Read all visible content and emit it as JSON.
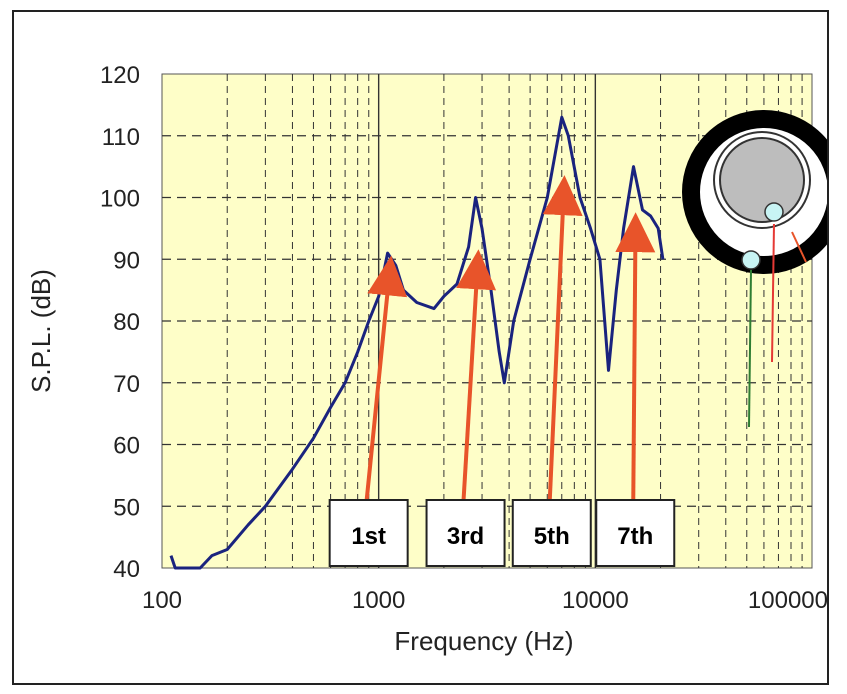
{
  "chart_data": {
    "type": "line",
    "x_scale": "log",
    "grid": true,
    "xlim": [
      100,
      100000
    ],
    "ylim": [
      40,
      120
    ],
    "xlabel": "Frequency (Hz)",
    "ylabel": "S.P.L. (dB)",
    "x_ticks": [
      100,
      1000,
      10000,
      100000
    ],
    "x_tick_labels": [
      "100",
      "1000",
      "10000",
      "100000"
    ],
    "y_ticks": [
      40,
      50,
      60,
      70,
      80,
      90,
      100,
      110,
      120
    ],
    "y_tick_labels": [
      "40",
      "50",
      "60",
      "70",
      "80",
      "90",
      "100",
      "110",
      "120"
    ],
    "series": [
      {
        "color": "#1a237e",
        "points": [
          [
            110,
            42
          ],
          [
            115,
            40
          ],
          [
            130,
            40
          ],
          [
            150,
            40
          ],
          [
            170,
            42
          ],
          [
            200,
            43
          ],
          [
            250,
            47
          ],
          [
            300,
            50
          ],
          [
            400,
            56
          ],
          [
            500,
            61
          ],
          [
            600,
            66
          ],
          [
            700,
            70
          ],
          [
            800,
            75
          ],
          [
            900,
            80
          ],
          [
            1000,
            84
          ],
          [
            1100,
            91
          ],
          [
            1200,
            89
          ],
          [
            1300,
            85
          ],
          [
            1500,
            83
          ],
          [
            1800,
            82
          ],
          [
            2000,
            84
          ],
          [
            2300,
            86
          ],
          [
            2600,
            92
          ],
          [
            2800,
            100
          ],
          [
            3000,
            95
          ],
          [
            3300,
            85
          ],
          [
            3600,
            75
          ],
          [
            3800,
            70
          ],
          [
            4200,
            80
          ],
          [
            5000,
            90
          ],
          [
            6000,
            100
          ],
          [
            7000,
            113
          ],
          [
            7500,
            110
          ],
          [
            8500,
            100
          ],
          [
            9500,
            95
          ],
          [
            10500,
            90
          ],
          [
            11500,
            72
          ],
          [
            12500,
            85
          ],
          [
            13500,
            95
          ],
          [
            15000,
            105
          ],
          [
            16500,
            98
          ],
          [
            18000,
            97
          ],
          [
            19500,
            95
          ],
          [
            20500,
            90
          ]
        ]
      }
    ],
    "annotations": [
      {
        "text": "1st",
        "peak_x": 1100,
        "peak_y": 89,
        "box_x": 1000
      },
      {
        "text": "3rd",
        "peak_x": 2800,
        "peak_y": 90,
        "box_x": 2800
      },
      {
        "text": "5th",
        "peak_x": 7000,
        "peak_y": 102,
        "box_x": 7000
      },
      {
        "text": "7th",
        "peak_x": 15000,
        "peak_y": 96,
        "box_x": 17000
      }
    ],
    "colors": {
      "plot_background": "#fefec8",
      "line": "#1a237e",
      "arrows": "#e8542a"
    }
  },
  "inset": {
    "type": "speaker-cone-diagram"
  }
}
